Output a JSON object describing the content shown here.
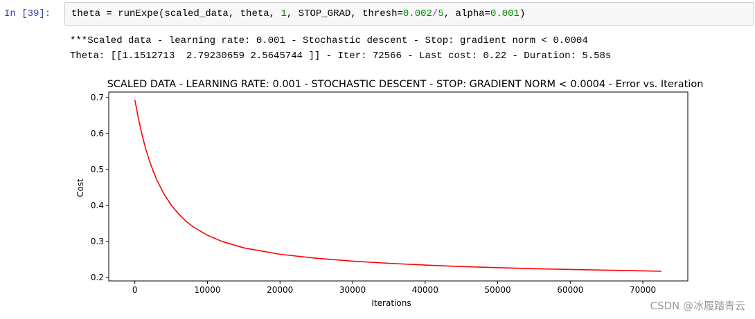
{
  "cell": {
    "prompt": "In  [39]:",
    "code": {
      "p1": "theta = runExpe(scaled_data, theta, ",
      "n1": "1",
      "p2": ", STOP_GRAD, thresh=",
      "n2": "0.002",
      "op": "/",
      "n3": "5",
      "p3": ", alpha=",
      "n4": "0.001",
      "p4": ")"
    }
  },
  "output": {
    "line1": "***Scaled data - learning rate: 0.001 - Stochastic descent - Stop: gradient norm < 0.0004",
    "line2": "Theta: [[1.1512713  2.79230659 2.5645744 ]] - Iter: 72566 - Last cost: 0.22 - Duration: 5.58s"
  },
  "chart_data": {
    "type": "line",
    "title": "SCALED DATA - LEARNING RATE: 0.001 - STOCHASTIC DESCENT - STOP: GRADIENT NORM < 0.0004 - Error vs. Iteration",
    "xlabel": "Iterations",
    "ylabel": "Cost",
    "xlim": [
      -3600,
      76200
    ],
    "ylim": [
      0.19,
      0.715
    ],
    "xticks": [
      0,
      10000,
      20000,
      30000,
      40000,
      50000,
      60000,
      70000
    ],
    "yticks": [
      0.2,
      0.3,
      0.4,
      0.5,
      0.6,
      0.7
    ],
    "grid": false,
    "series": [
      {
        "color": "#ff0000",
        "x": [
          0,
          500,
          1000,
          1500,
          2000,
          2500,
          3000,
          4000,
          5000,
          6000,
          7000,
          8000,
          10000,
          12000,
          15000,
          20000,
          25000,
          30000,
          35000,
          40000,
          45000,
          50000,
          55000,
          60000,
          65000,
          70000,
          72566
        ],
        "y": [
          0.693,
          0.64,
          0.595,
          0.557,
          0.524,
          0.497,
          0.472,
          0.432,
          0.401,
          0.377,
          0.357,
          0.341,
          0.317,
          0.3,
          0.282,
          0.264,
          0.253,
          0.245,
          0.239,
          0.234,
          0.23,
          0.227,
          0.224,
          0.222,
          0.22,
          0.218,
          0.217
        ]
      }
    ]
  },
  "watermark": "CSDN @冰履踏青云"
}
